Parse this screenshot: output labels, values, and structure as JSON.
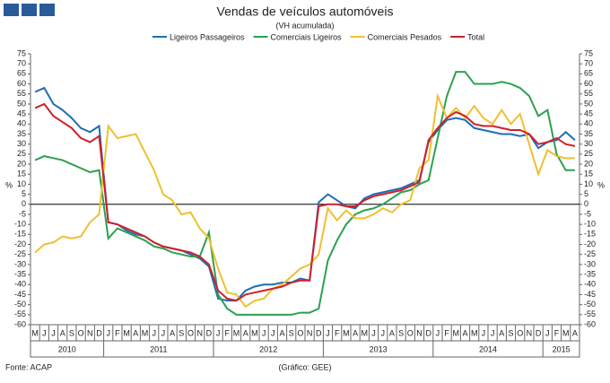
{
  "chart_data": {
    "type": "line",
    "title": "Vendas de veículos automóveis",
    "subtitle": "(VH acumulada)",
    "ylabel": "%",
    "y2label": "%",
    "source": "Fonte: ACAP",
    "credit": "(Gráfico: GEE)",
    "categories": [
      "M",
      "J",
      "J",
      "A",
      "S",
      "O",
      "N",
      "D",
      "J",
      "F",
      "M",
      "A",
      "M",
      "J",
      "J",
      "A",
      "S",
      "O",
      "N",
      "D",
      "J",
      "F",
      "M",
      "A",
      "M",
      "J",
      "J",
      "A",
      "S",
      "O",
      "N",
      "D",
      "J",
      "F",
      "M",
      "A",
      "M",
      "J",
      "J",
      "A",
      "S",
      "O",
      "N",
      "D",
      "J",
      "F",
      "M",
      "A",
      "M",
      "J",
      "J",
      "A",
      "S",
      "O",
      "N",
      "D",
      "J",
      "F",
      "M",
      "A"
    ],
    "x_groups": [
      "2010",
      "2011",
      "2012",
      "2013",
      "2014",
      "2015"
    ],
    "ylim": [
      -60,
      75
    ],
    "y2lim": [
      -60,
      75
    ],
    "yticks": [
      -60,
      -55,
      -50,
      -45,
      -40,
      -35,
      -30,
      -25,
      -20,
      -15,
      -10,
      -5,
      0,
      5,
      10,
      15,
      20,
      25,
      30,
      35,
      40,
      45,
      50,
      55,
      60,
      65,
      70,
      75
    ],
    "y2ticks": [
      -60,
      -55,
      -50,
      -45,
      -40,
      -35,
      -30,
      -25,
      -20,
      -15,
      -10,
      -5,
      0,
      5,
      10,
      15,
      20,
      25,
      30,
      35,
      40,
      45,
      50,
      55,
      60,
      65,
      70,
      75
    ],
    "legend": "top",
    "series": [
      {
        "name": "Ligeiros Passageiros",
        "color": "#1f6db3",
        "values": [
          56,
          58,
          50,
          47,
          43,
          38,
          36,
          39,
          -9,
          -10,
          -13,
          -15,
          -16,
          -19,
          -21,
          -22,
          -23,
          -25,
          -27,
          -31,
          -47,
          -48,
          -48,
          -43,
          -41,
          -40,
          -40,
          -39,
          -39,
          -37,
          -38,
          1,
          5,
          2,
          -1,
          -2,
          3,
          5,
          6,
          7,
          8,
          10,
          12,
          31,
          37,
          42,
          43,
          42,
          38,
          37,
          36,
          35,
          35,
          34,
          35,
          28,
          31,
          32,
          36,
          32
        ]
      },
      {
        "name": "Comerciais Ligeiros",
        "color": "#2ca050",
        "values": [
          22,
          24,
          23,
          22,
          20,
          18,
          16,
          17,
          -17,
          -12,
          -14,
          -16,
          -18,
          -21,
          -22,
          -24,
          -25,
          -26,
          -26,
          -14,
          -45,
          -52,
          -55,
          -55,
          -55,
          -55,
          -55,
          -55,
          -55,
          -54,
          -54,
          -52,
          -28,
          -18,
          -10,
          -5,
          -3,
          -2,
          0,
          3,
          6,
          7,
          10,
          12,
          33,
          54,
          66,
          66,
          60,
          60,
          60,
          61,
          60,
          58,
          54,
          44,
          47,
          25,
          17,
          17
        ]
      },
      {
        "name": "Comerciais Pesados",
        "color": "#f0c030",
        "values": [
          -24,
          -20,
          -19,
          -16,
          -17,
          -16,
          -9,
          -5,
          39,
          33,
          34,
          35,
          26,
          17,
          5,
          2,
          -5,
          -4,
          -12,
          -17,
          -32,
          -44,
          -45,
          -51,
          -48,
          -47,
          -42,
          -40,
          -36,
          -32,
          -30,
          -25,
          -2,
          -8,
          -3,
          -7,
          -7,
          -5,
          -2,
          -4,
          0,
          2,
          18,
          22,
          54,
          43,
          48,
          43,
          49,
          43,
          40,
          47,
          40,
          45,
          30,
          15,
          27,
          24,
          23,
          23
        ]
      },
      {
        "name": "Total",
        "color": "#d0202a",
        "values": [
          48,
          50,
          44,
          41,
          38,
          33,
          31,
          34,
          -9,
          -10,
          -12,
          -14,
          -16,
          -19,
          -21,
          -22,
          -23,
          -24,
          -26,
          -30,
          -43,
          -47,
          -48,
          -45,
          -44,
          -43,
          -42,
          -41,
          -39,
          -38,
          -38,
          -1,
          0,
          0,
          -1,
          -1,
          2,
          4,
          5,
          6,
          7,
          9,
          11,
          32,
          38,
          43,
          46,
          44,
          40,
          39,
          39,
          38,
          37,
          37,
          35,
          30,
          31,
          33,
          30,
          29
        ]
      }
    ]
  }
}
